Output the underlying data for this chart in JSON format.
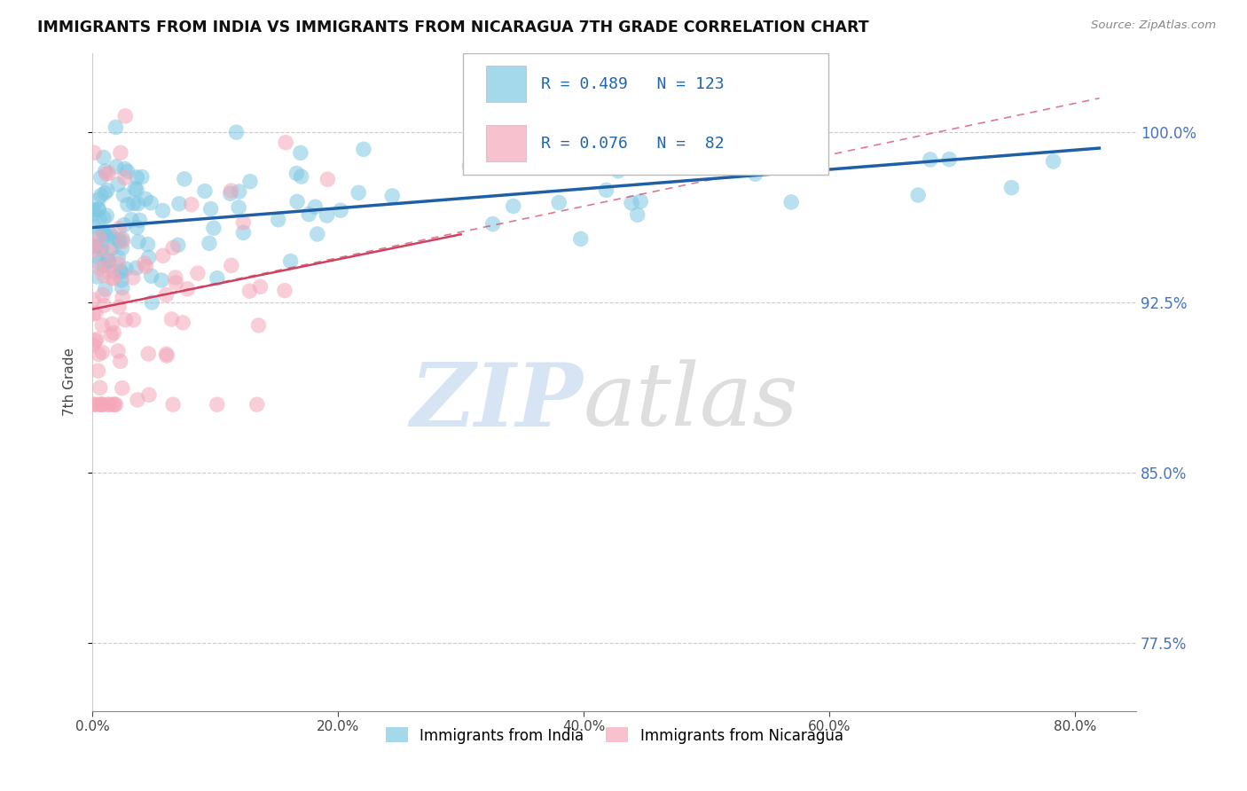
{
  "title": "IMMIGRANTS FROM INDIA VS IMMIGRANTS FROM NICARAGUA 7TH GRADE CORRELATION CHART",
  "source": "Source: ZipAtlas.com",
  "ylabel": "7th Grade",
  "x_tick_values": [
    0.0,
    20.0,
    40.0,
    60.0,
    80.0
  ],
  "x_tick_labels": [
    "0.0%",
    "20.0%",
    "40.0%",
    "60.0%",
    "80.0%"
  ],
  "y_tick_values": [
    77.5,
    85.0,
    92.5,
    100.0
  ],
  "y_tick_labels": [
    "77.5%",
    "85.0%",
    "92.5%",
    "100.0%"
  ],
  "xlim": [
    0.0,
    85.0
  ],
  "ylim": [
    74.5,
    103.5
  ],
  "legend_india": "Immigrants from India",
  "legend_nicaragua": "Immigrants from Nicaragua",
  "R_india": 0.489,
  "N_india": 123,
  "R_nicaragua": 0.076,
  "N_nicaragua": 82,
  "color_india": "#7ec8e3",
  "color_nicaragua": "#f4a7b9",
  "color_trendline_india": "#1f5fa6",
  "color_trendline_nicaragua": "#d04060",
  "watermark_zip_color": "#c5d9f0",
  "watermark_atlas_color": "#c8c8c8",
  "background_color": "#ffffff",
  "india_trendline_x0": 0,
  "india_trendline_y0": 95.8,
  "india_trendline_x1": 82,
  "india_trendline_y1": 99.3,
  "nicaragua_solid_x0": 0,
  "nicaragua_solid_y0": 92.2,
  "nicaragua_solid_x1": 30,
  "nicaragua_solid_y1": 95.5,
  "nicaragua_dashed_x0": 0,
  "nicaragua_dashed_y0": 92.2,
  "nicaragua_dashed_x1": 82,
  "nicaragua_dashed_y1": 101.5
}
